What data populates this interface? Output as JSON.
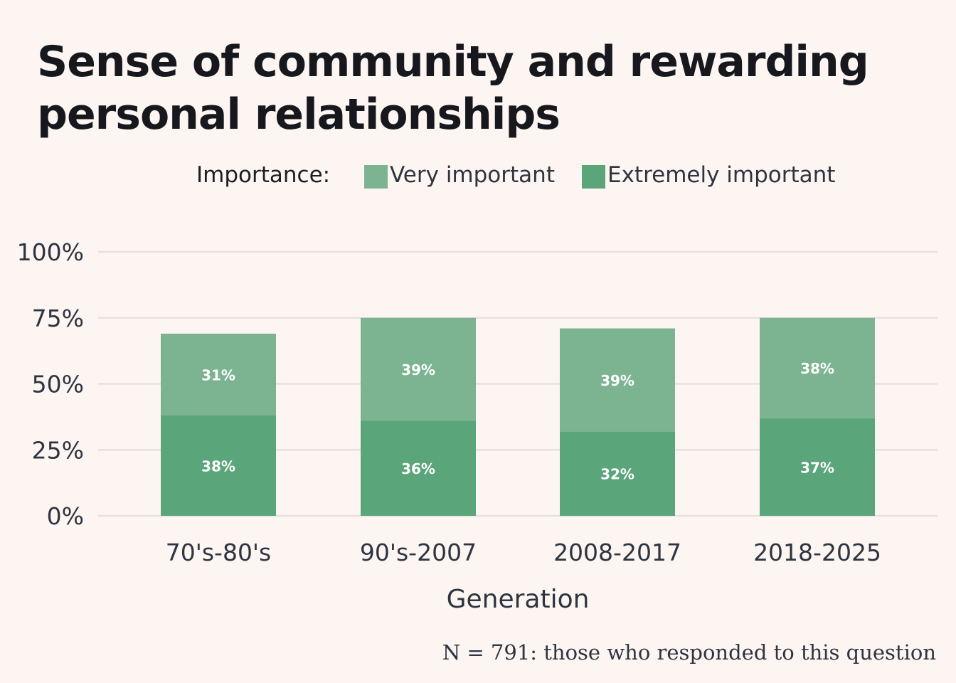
{
  "chart_data": {
    "type": "bar",
    "stacked": true,
    "title": "Sense of community and rewarding personal relationships",
    "xlabel": "Generation",
    "ylabel": "",
    "ylim": [
      0,
      100
    ],
    "yticks": [
      "0%",
      "25%",
      "50%",
      "75%",
      "100%"
    ],
    "grid": true,
    "legend": {
      "title": "Importance:",
      "placement": "top"
    },
    "categories": [
      "70's-80's",
      "90's-2007",
      "2008-2017",
      "2018-2025"
    ],
    "series": [
      {
        "name": "Extremely important",
        "color": "#5ba57a",
        "values": [
          38,
          36,
          32,
          37
        ],
        "labels": [
          "38%",
          "36%",
          "32%",
          "37%"
        ]
      },
      {
        "name": "Very important",
        "color": "#7cb492",
        "values": [
          31,
          39,
          39,
          38
        ],
        "labels": [
          "31%",
          "39%",
          "39%",
          "38%"
        ]
      }
    ],
    "caption": "N = 791: those who responded to this question"
  },
  "colors": {
    "background": "#fdf5f2",
    "grid": "#e6e2e0",
    "bar_label": "#ffffff"
  }
}
